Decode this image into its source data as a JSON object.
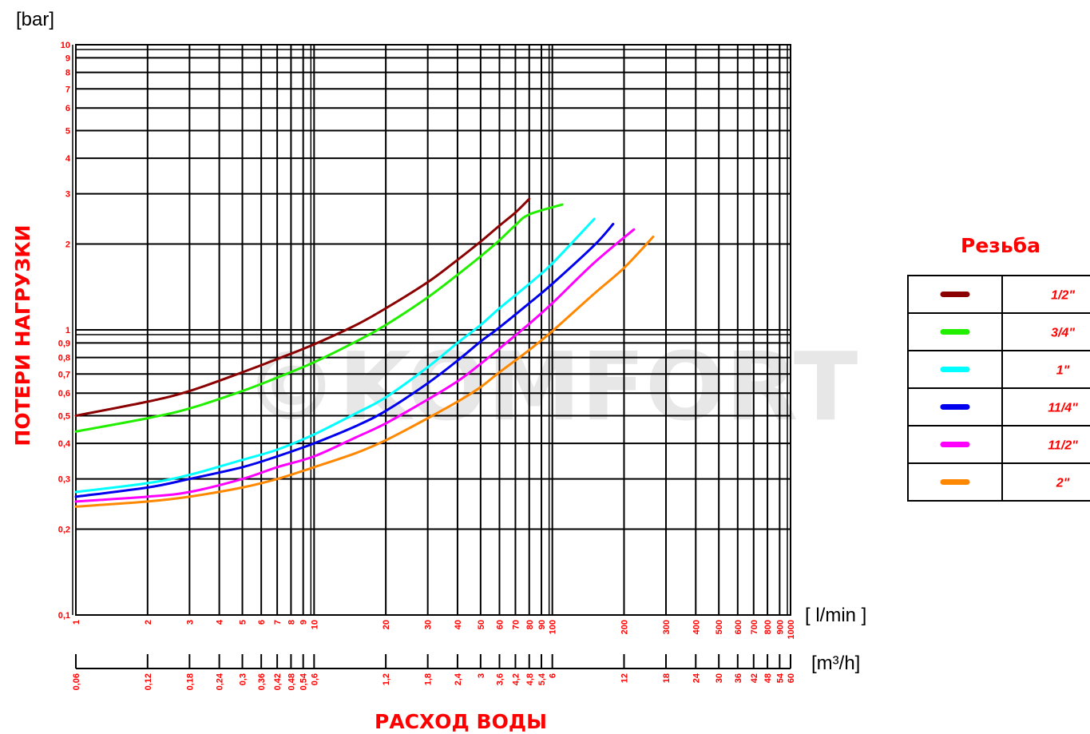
{
  "chart_data": {
    "type": "line",
    "scale": "log-log",
    "watermark": "©KOMFORT",
    "y_unit": "[bar]",
    "y_title": "ПОТЕРИ НАГРУЗКИ",
    "x_unit": "[ l/min ]",
    "x2_unit": "[m³/h]",
    "x_title": "РАСХОД ВОДЫ",
    "ylim": [
      0.1,
      10
    ],
    "xlim": [
      1,
      1000
    ],
    "grid": true,
    "y_ticks": [
      {
        "v": 10,
        "t": "10"
      },
      {
        "v": 9,
        "t": "9"
      },
      {
        "v": 8,
        "t": "8"
      },
      {
        "v": 7,
        "t": "7"
      },
      {
        "v": 6,
        "t": "6"
      },
      {
        "v": 5,
        "t": "5"
      },
      {
        "v": 4,
        "t": "4"
      },
      {
        "v": 3,
        "t": "3"
      },
      {
        "v": 2,
        "t": "2"
      },
      {
        "v": 1,
        "t": "1"
      },
      {
        "v": 0.9,
        "t": "0,9"
      },
      {
        "v": 0.8,
        "t": "0,8"
      },
      {
        "v": 0.7,
        "t": "0,7"
      },
      {
        "v": 0.6,
        "t": "0,6"
      },
      {
        "v": 0.5,
        "t": "0,5"
      },
      {
        "v": 0.4,
        "t": "0,4"
      },
      {
        "v": 0.3,
        "t": "0,3"
      },
      {
        "v": 0.2,
        "t": "0,2"
      },
      {
        "v": 0.1,
        "t": "0,1"
      }
    ],
    "x_ticks": [
      {
        "v": 1,
        "t": "1"
      },
      {
        "v": 2,
        "t": "2"
      },
      {
        "v": 3,
        "t": "3"
      },
      {
        "v": 4,
        "t": "4"
      },
      {
        "v": 5,
        "t": "5"
      },
      {
        "v": 6,
        "t": "6"
      },
      {
        "v": 7,
        "t": "7"
      },
      {
        "v": 8,
        "t": "8"
      },
      {
        "v": 9,
        "t": "9"
      },
      {
        "v": 10,
        "t": "10"
      },
      {
        "v": 20,
        "t": "20"
      },
      {
        "v": 30,
        "t": "30"
      },
      {
        "v": 40,
        "t": "40"
      },
      {
        "v": 50,
        "t": "50"
      },
      {
        "v": 60,
        "t": "60"
      },
      {
        "v": 70,
        "t": "70"
      },
      {
        "v": 80,
        "t": "80"
      },
      {
        "v": 90,
        "t": "90"
      },
      {
        "v": 100,
        "t": "100"
      },
      {
        "v": 200,
        "t": "200"
      },
      {
        "v": 300,
        "t": "300"
      },
      {
        "v": 400,
        "t": "400"
      },
      {
        "v": 500,
        "t": "500"
      },
      {
        "v": 600,
        "t": "600"
      },
      {
        "v": 700,
        "t": "700"
      },
      {
        "v": 800,
        "t": "800"
      },
      {
        "v": 900,
        "t": "900"
      },
      {
        "v": 1000,
        "t": "1000"
      }
    ],
    "x2_ticks": [
      {
        "v": 1,
        "t": "0,06"
      },
      {
        "v": 2,
        "t": "0,12"
      },
      {
        "v": 3,
        "t": "0,18"
      },
      {
        "v": 4,
        "t": "0,24"
      },
      {
        "v": 5,
        "t": "0,3"
      },
      {
        "v": 6,
        "t": "0,36"
      },
      {
        "v": 7,
        "t": "0,42"
      },
      {
        "v": 8,
        "t": "0,48"
      },
      {
        "v": 9,
        "t": "0,54"
      },
      {
        "v": 10,
        "t": "0,6"
      },
      {
        "v": 20,
        "t": "1,2"
      },
      {
        "v": 30,
        "t": "1,8"
      },
      {
        "v": 40,
        "t": "2,4"
      },
      {
        "v": 50,
        "t": "3"
      },
      {
        "v": 60,
        "t": "3,6"
      },
      {
        "v": 70,
        "t": "4,2"
      },
      {
        "v": 80,
        "t": "4,8"
      },
      {
        "v": 90,
        "t": "5,4"
      },
      {
        "v": 100,
        "t": "6"
      },
      {
        "v": 200,
        "t": "12"
      },
      {
        "v": 300,
        "t": "18"
      },
      {
        "v": 400,
        "t": "24"
      },
      {
        "v": 500,
        "t": "30"
      },
      {
        "v": 600,
        "t": "36"
      },
      {
        "v": 700,
        "t": "42"
      },
      {
        "v": 800,
        "t": "48"
      },
      {
        "v": 900,
        "t": "54"
      },
      {
        "v": 1000,
        "t": "60"
      }
    ],
    "legend": {
      "title": "Резьба",
      "placement": "right"
    },
    "series": [
      {
        "name": "1/2\"",
        "color": "#8b0000",
        "points": [
          [
            1,
            0.5
          ],
          [
            2,
            0.56
          ],
          [
            3,
            0.61
          ],
          [
            5,
            0.71
          ],
          [
            7,
            0.79
          ],
          [
            10,
            0.89
          ],
          [
            15,
            1.04
          ],
          [
            20,
            1.19
          ],
          [
            30,
            1.47
          ],
          [
            40,
            1.76
          ],
          [
            50,
            2.04
          ],
          [
            60,
            2.32
          ],
          [
            70,
            2.58
          ],
          [
            80,
            2.88
          ]
        ]
      },
      {
        "name": "3/4\"",
        "color": "#22ee00",
        "points": [
          [
            1,
            0.44
          ],
          [
            2,
            0.49
          ],
          [
            3,
            0.53
          ],
          [
            5,
            0.61
          ],
          [
            7,
            0.68
          ],
          [
            10,
            0.77
          ],
          [
            15,
            0.91
          ],
          [
            20,
            1.04
          ],
          [
            30,
            1.3
          ],
          [
            40,
            1.56
          ],
          [
            50,
            1.81
          ],
          [
            60,
            2.06
          ],
          [
            70,
            2.33
          ],
          [
            80,
            2.54
          ],
          [
            110,
            2.75
          ]
        ]
      },
      {
        "name": "1\"",
        "color": "#00ffff",
        "points": [
          [
            1,
            0.27
          ],
          [
            2,
            0.29
          ],
          [
            3,
            0.31
          ],
          [
            5,
            0.35
          ],
          [
            7,
            0.38
          ],
          [
            10,
            0.43
          ],
          [
            15,
            0.51
          ],
          [
            20,
            0.58
          ],
          [
            30,
            0.74
          ],
          [
            40,
            0.9
          ],
          [
            50,
            1.04
          ],
          [
            60,
            1.19
          ],
          [
            80,
            1.45
          ],
          [
            100,
            1.71
          ],
          [
            150,
            2.45
          ]
        ]
      },
      {
        "name": "11/4\"",
        "color": "#0000ee",
        "points": [
          [
            1,
            0.26
          ],
          [
            2,
            0.28
          ],
          [
            3,
            0.3
          ],
          [
            5,
            0.33
          ],
          [
            7,
            0.36
          ],
          [
            10,
            0.4
          ],
          [
            15,
            0.46
          ],
          [
            20,
            0.52
          ],
          [
            30,
            0.65
          ],
          [
            40,
            0.78
          ],
          [
            50,
            0.91
          ],
          [
            60,
            1.02
          ],
          [
            80,
            1.24
          ],
          [
            100,
            1.45
          ],
          [
            150,
            1.98
          ],
          [
            180,
            2.35
          ]
        ]
      },
      {
        "name": "11/2\"",
        "color": "#ff00ff",
        "points": [
          [
            1,
            0.25
          ],
          [
            2,
            0.26
          ],
          [
            3,
            0.27
          ],
          [
            5,
            0.3
          ],
          [
            7,
            0.33
          ],
          [
            10,
            0.36
          ],
          [
            15,
            0.42
          ],
          [
            20,
            0.47
          ],
          [
            30,
            0.57
          ],
          [
            40,
            0.66
          ],
          [
            50,
            0.76
          ],
          [
            60,
            0.86
          ],
          [
            80,
            1.05
          ],
          [
            100,
            1.24
          ],
          [
            150,
            1.72
          ],
          [
            220,
            2.25
          ]
        ]
      },
      {
        "name": "2\"",
        "color": "#ff8800",
        "points": [
          [
            1,
            0.24
          ],
          [
            2,
            0.25
          ],
          [
            3,
            0.26
          ],
          [
            5,
            0.28
          ],
          [
            7,
            0.3
          ],
          [
            10,
            0.33
          ],
          [
            15,
            0.37
          ],
          [
            20,
            0.41
          ],
          [
            30,
            0.49
          ],
          [
            40,
            0.56
          ],
          [
            50,
            0.63
          ],
          [
            60,
            0.71
          ],
          [
            80,
            0.85
          ],
          [
            100,
            0.99
          ],
          [
            150,
            1.34
          ],
          [
            200,
            1.65
          ],
          [
            265,
            2.12
          ]
        ]
      }
    ]
  }
}
